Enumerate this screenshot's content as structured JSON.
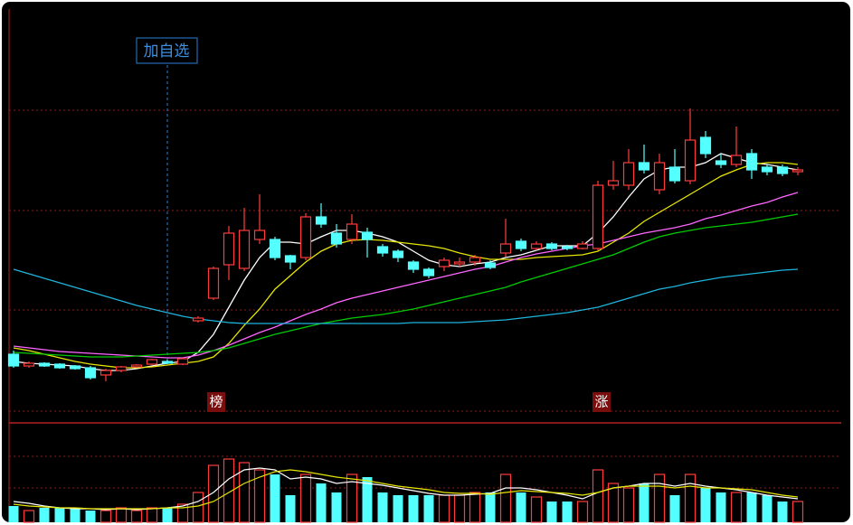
{
  "chart_data": {
    "type": "candlestick",
    "ylim": [
      0,
      450
    ],
    "up_color": "#ff3c3c",
    "down_color": "#54ffff",
    "open": [
      68,
      55,
      58,
      57,
      55,
      53,
      45,
      50,
      54,
      57,
      60,
      57,
      105,
      130,
      167,
      163,
      195,
      195,
      177,
      175,
      220,
      202,
      195,
      203,
      187,
      182,
      170,
      162,
      165,
      168,
      170,
      169,
      180,
      193,
      185,
      190,
      187,
      185,
      185,
      255,
      255,
      280,
      250,
      275,
      260,
      308,
      282,
      278,
      290,
      275,
      275,
      270
    ],
    "close": [
      55,
      58,
      55,
      53,
      52,
      42,
      50,
      54,
      56,
      62,
      58,
      63,
      108,
      163,
      202,
      205,
      205,
      175,
      170,
      220,
      212,
      190,
      212,
      195,
      180,
      175,
      162,
      155,
      172,
      170,
      175,
      164,
      190,
      185,
      190,
      185,
      185,
      190,
      255,
      260,
      280,
      272,
      280,
      260,
      305,
      290,
      278,
      288,
      272,
      270,
      268,
      272
    ],
    "high": [
      72,
      60,
      59,
      58,
      56,
      55,
      52,
      55,
      57,
      63,
      62,
      64,
      110,
      165,
      210,
      230,
      245,
      198,
      178,
      224,
      235,
      212,
      223,
      208,
      190,
      184,
      172,
      164,
      175,
      175,
      178,
      172,
      218,
      196,
      193,
      192,
      189,
      193,
      260,
      282,
      295,
      300,
      290,
      295,
      340,
      315,
      290,
      320,
      295,
      278,
      278,
      275
    ],
    "low": [
      53,
      53,
      54,
      52,
      51,
      40,
      38,
      48,
      53,
      56,
      57,
      56,
      103,
      128,
      150,
      160,
      190,
      172,
      162,
      172,
      208,
      186,
      190,
      175,
      176,
      170,
      158,
      152,
      160,
      165,
      166,
      162,
      176,
      182,
      183,
      183,
      183,
      184,
      183,
      250,
      250,
      268,
      245,
      257,
      256,
      285,
      274,
      275,
      262,
      266,
      265,
      266
    ],
    "lines": [
      {
        "color": "#ffffff",
        "values": [
          60,
          58,
          57,
          56,
          55,
          52,
          50,
          50,
          52,
          55,
          58,
          60,
          70,
          90,
          120,
          150,
          175,
          192,
          192,
          190,
          198,
          205,
          205,
          202,
          198,
          192,
          182,
          172,
          167,
          165,
          168,
          170,
          175,
          178,
          183,
          188,
          188,
          188,
          202,
          220,
          242,
          262,
          272,
          275,
          275,
          280,
          290,
          285,
          280,
          278,
          275,
          272
        ]
      },
      {
        "color": "#e6e600",
        "values": [
          75,
          72,
          68,
          64,
          60,
          57,
          55,
          53,
          53,
          54,
          56,
          58,
          60,
          65,
          80,
          100,
          118,
          140,
          155,
          170,
          182,
          190,
          194,
          195,
          194,
          192,
          190,
          188,
          185,
          180,
          176,
          173,
          173,
          173,
          175,
          176,
          177,
          178,
          182,
          192,
          202,
          215,
          225,
          235,
          245,
          255,
          265,
          272,
          278,
          280,
          280,
          278
        ]
      },
      {
        "color": "#ff66ff",
        "values": [
          77,
          75,
          73,
          71,
          70,
          69,
          68,
          67,
          66,
          65,
          64,
          64,
          67,
          72,
          78,
          85,
          92,
          98,
          105,
          112,
          118,
          125,
          130,
          134,
          138,
          142,
          146,
          150,
          154,
          158,
          162,
          165,
          170,
          175,
          179,
          182,
          185,
          188,
          190,
          194,
          198,
          202,
          205,
          208,
          212,
          218,
          222,
          227,
          232,
          236,
          242,
          247
        ]
      },
      {
        "color": "#00cc00",
        "values": [
          70,
          69,
          68,
          67,
          66,
          65,
          65,
          65,
          66,
          67,
          68,
          69,
          70,
          72,
          75,
          80,
          85,
          90,
          94,
          98,
          102,
          105,
          108,
          110,
          112,
          115,
          118,
          122,
          126,
          130,
          134,
          138,
          142,
          148,
          153,
          158,
          163,
          168,
          173,
          178,
          185,
          192,
          198,
          202,
          205,
          208,
          210,
          212,
          214,
          217,
          220,
          223
        ]
      },
      {
        "color": "#1eb4dc",
        "values": [
          162,
          157,
          152,
          147,
          142,
          137,
          132,
          127,
          122,
          118,
          114,
          110,
          107,
          105,
          103,
          102,
          102,
          102,
          102,
          102,
          102,
          102,
          102,
          102,
          102,
          102,
          103,
          103,
          103,
          103,
          104,
          105,
          106,
          108,
          110,
          112,
          114,
          117,
          120,
          125,
          130,
          135,
          140,
          143,
          147,
          150,
          153,
          155,
          157,
          159,
          161,
          162
        ]
      }
    ],
    "volume": {
      "ylim": [
        0,
        108
      ],
      "values": [
        18,
        13,
        16,
        16,
        16,
        13,
        13,
        16,
        13,
        16,
        16,
        20,
        33,
        63,
        70,
        66,
        58,
        53,
        30,
        53,
        43,
        33,
        53,
        50,
        33,
        30,
        30,
        30,
        30,
        30,
        33,
        33,
        53,
        33,
        28,
        23,
        23,
        23,
        58,
        43,
        38,
        43,
        53,
        30,
        53,
        38,
        33,
        33,
        33,
        30,
        23,
        23
      ],
      "lines": [
        {
          "color": "#ffffff",
          "values": [
            23,
            21,
            18,
            16,
            15,
            15,
            14,
            15,
            14,
            15,
            16,
            18,
            23,
            33,
            48,
            58,
            60,
            58,
            48,
            50,
            48,
            43,
            45,
            43,
            41,
            38,
            35,
            32,
            30,
            30,
            31,
            32,
            38,
            38,
            36,
            33,
            30,
            26,
            33,
            38,
            40,
            43,
            43,
            40,
            43,
            40,
            38,
            36,
            33,
            30,
            28,
            26
          ]
        },
        {
          "color": "#e6e600",
          "values": [
            20,
            18,
            17,
            16,
            16,
            15,
            15,
            15,
            15,
            15,
            16,
            16,
            18,
            23,
            33,
            43,
            50,
            56,
            58,
            56,
            53,
            50,
            48,
            46,
            43,
            40,
            38,
            36,
            33,
            32,
            32,
            31,
            33,
            35,
            34,
            33,
            32,
            30,
            33,
            38,
            40,
            40,
            40,
            38,
            40,
            38,
            38,
            37,
            36,
            33,
            30,
            28
          ]
        }
      ]
    },
    "annotations": [
      "加自选",
      "榜",
      "涨"
    ]
  }
}
